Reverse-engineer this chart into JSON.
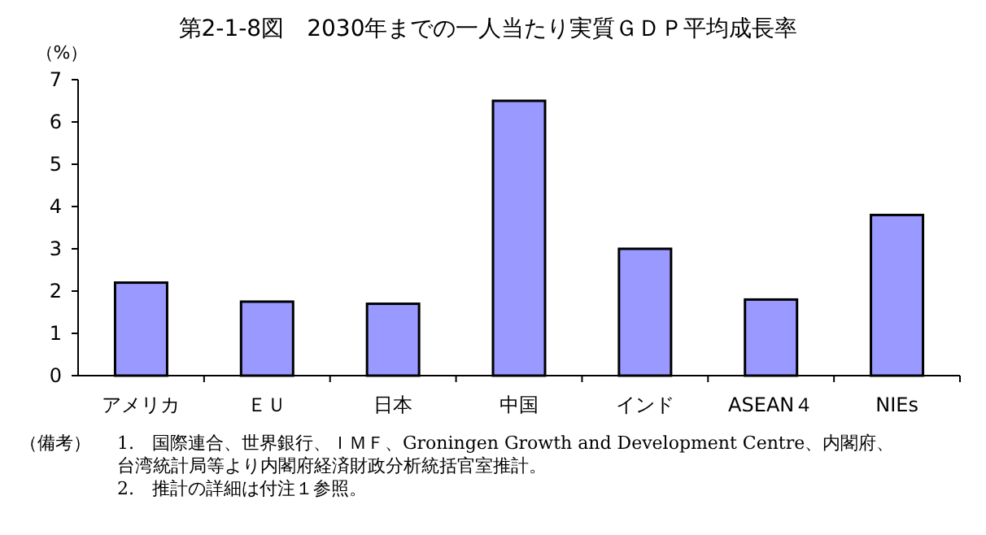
{
  "chart_data": {
    "type": "bar",
    "title": "第2-1-8図　2030年までの一人当たり実質ＧＤＰ平均成長率",
    "ylabel": "（%）",
    "categories": [
      "アメリカ",
      "ＥＵ",
      "日本",
      "中国",
      "インド",
      "ASEAN４",
      "NIEs"
    ],
    "values": [
      2.2,
      1.75,
      1.7,
      6.5,
      3.0,
      1.8,
      3.8
    ],
    "color": "#9999ff",
    "ylim": [
      0,
      7
    ],
    "yticks": [
      0,
      1,
      2,
      3,
      4,
      5,
      6,
      7
    ],
    "annotations": [
      "（備考）",
      "1.　国際連合、世界銀行、ＩＭＦ、Groningen Growth and Development Centre、内閣府、台湾統計局等より内閣府経済財政分析統括官室推計。",
      "2.　推計の詳細は付注１参照。"
    ]
  }
}
